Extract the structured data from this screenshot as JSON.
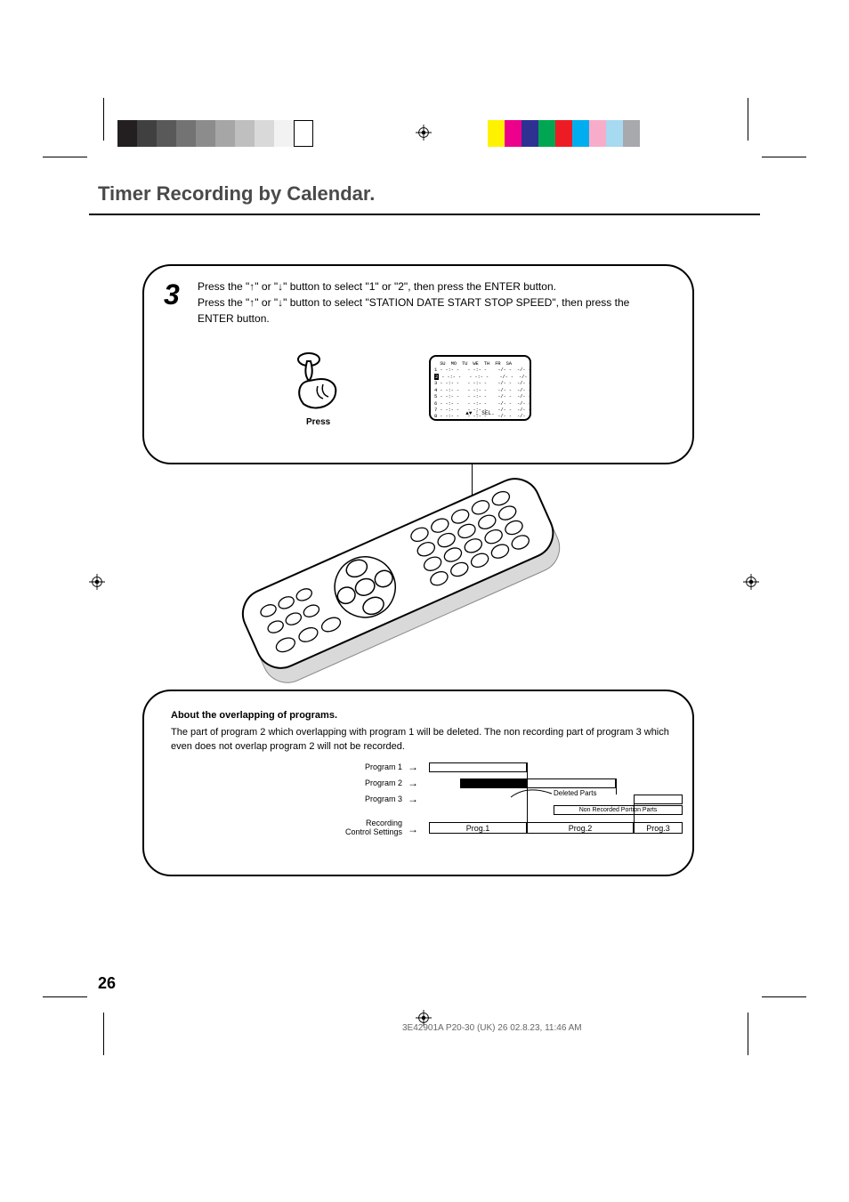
{
  "page": {
    "section_title": "Timer Recording by Calendar.",
    "page_number": "26",
    "footer": "3E42901A P20-30 (UK)               26                          02.8.23, 11:46 AM"
  },
  "colorbar_left": [
    "#231f20",
    "#404040",
    "#595959",
    "#737373",
    "#8c8c8c",
    "#a6a6a6",
    "#bfbfbf",
    "#d9d9d9",
    "#f2f2f2",
    "#ffffff"
  ],
  "colorbar_right": [
    "#fff200",
    "#ec008c",
    "#2e3192",
    "#00a651",
    "#ed1c24",
    "#00aeef",
    "#f7adc9",
    "#a7d9f0",
    "#a7a9ac"
  ],
  "step3": {
    "number": "3",
    "line1_pre": "Press the \"",
    "line1_mid": "\" or \"",
    "line1_post": "\" button to select \"1\" or \"2\", then press the ENTER button.",
    "line2_pre": "Press the \"",
    "line2_mid": "\" or \"",
    "line2_post": "\" button to select \"STATION DATE START STOP SPEED\", then press the",
    "line3": "ENTER button.",
    "press_label": "Press",
    "osd": {
      "header": "  SU  MO  TU  WE  TH  FR  SA",
      "r1": "1 - -:- -   - -:- -    -/- -  -/- -  - -  -",
      "r1_hl": "2",
      "r1_tail": " - -:- -   - -:- -    -/- -  -/- -  - -  -",
      "r3": "3 - -:- -   - -:- -    -/- -  -/- -  - -  -",
      "r4": "4 - -:- -   - -:- -    -/- -  -/- -  - -  -",
      "r5": "5 - -:- -   - -:- -    -/- -  -/- -  - -  -",
      "r6": "6 - -:- -   - -:- -    -/- -  -/- -  - -  -",
      "r7": "7 - -:- -   - -:- -    -/- -  -/- -  - -  -",
      "r8": "8 - -:- -   - -:- -    -/- -  -/- -  - -  -",
      "sel": "▲▼ : SEL."
    }
  },
  "overlap": {
    "title": "About the overlapping of programs.",
    "body": "The part of program 2 which overlapping with program 1 will be deleted. The non recording part of program 3 which even does not overlap program 2 will not be recorded.",
    "labels": {
      "p1": "Program 1",
      "p2": "Program 2",
      "p3": "Program 3",
      "rcs1": "Recording",
      "rcs2": "Control Settings"
    },
    "notes": {
      "deleted": "Deleted Parts",
      "nonrec": "Non Recorded Portion Parts"
    },
    "cells": {
      "c1": "Prog.1",
      "c2": "Prog.2",
      "c3": "Prog.3"
    }
  }
}
